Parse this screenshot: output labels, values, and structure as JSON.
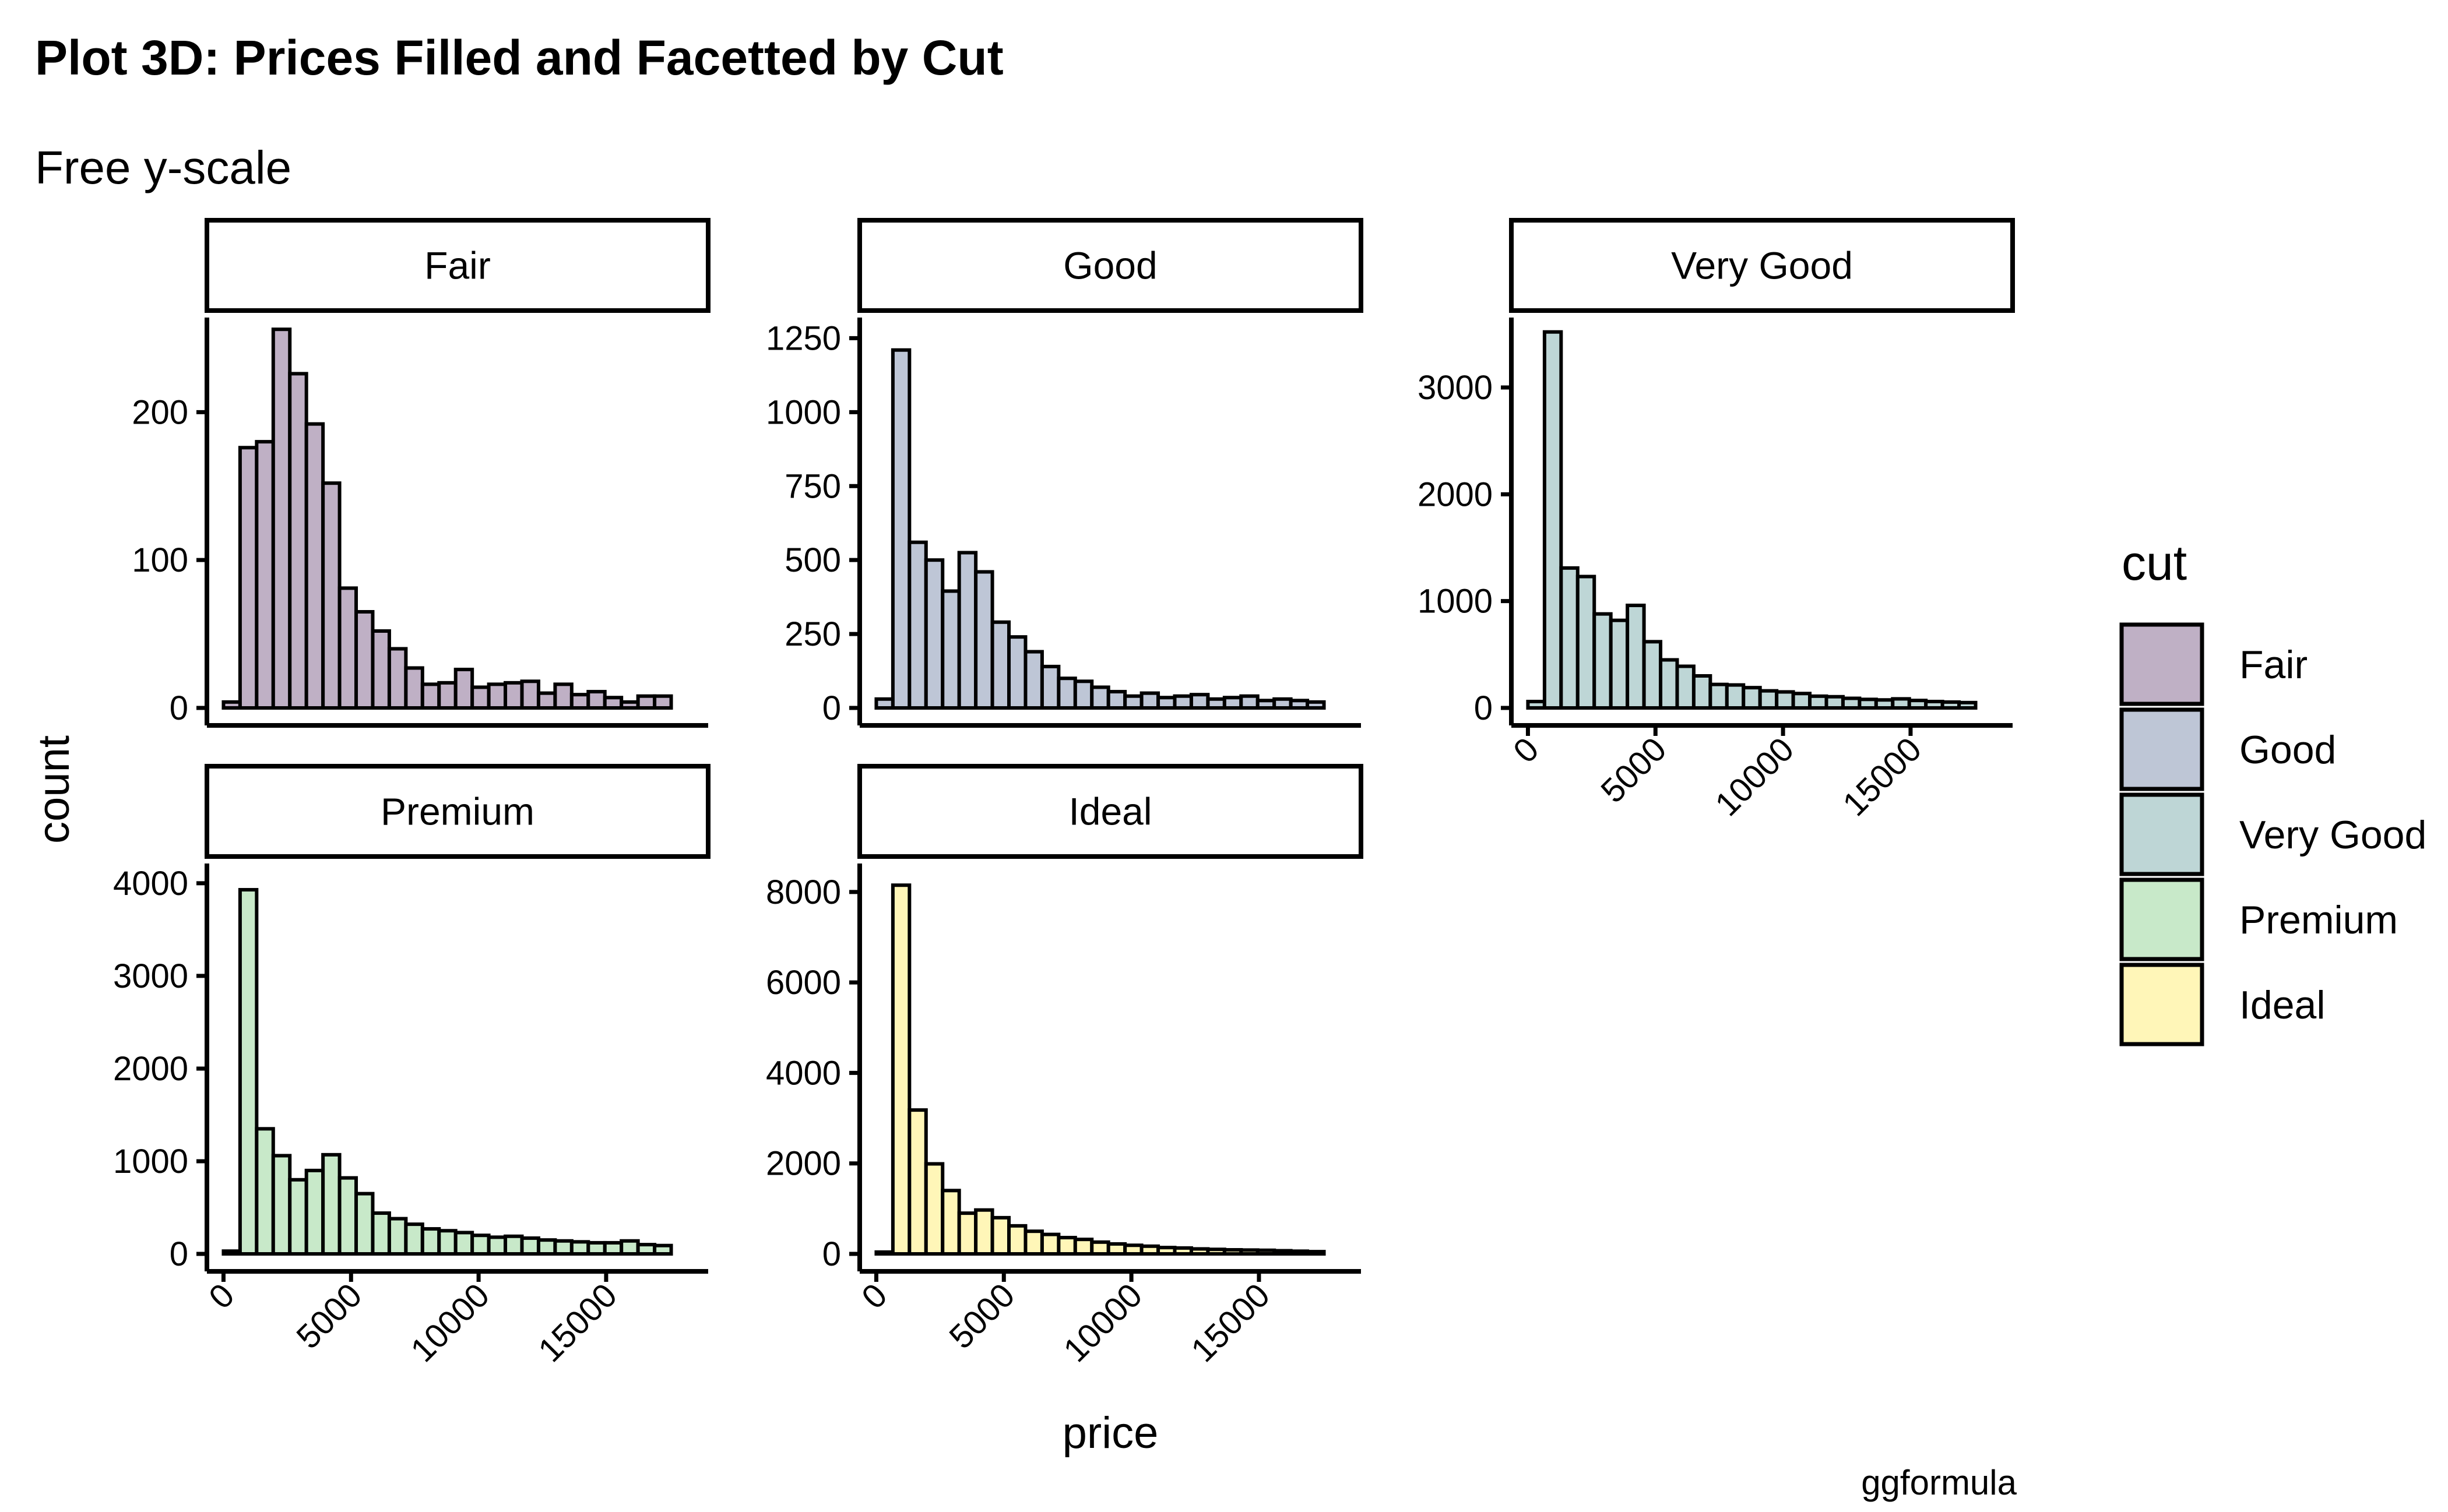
{
  "chart_data": {
    "type": "bar",
    "title": "Plot 3D: Prices Filled and Facetted by Cut",
    "subtitle": "Free y-scale",
    "xlabel": "price",
    "ylabel": "count",
    "caption": "ggformula",
    "legend": {
      "title": "cut",
      "position": "right"
    },
    "grid": false,
    "bin_starts": [
      0,
      650,
      1300,
      1950,
      2600,
      3250,
      3900,
      4550,
      5200,
      5850,
      6500,
      7150,
      7800,
      8450,
      9100,
      9750,
      10400,
      11050,
      11700,
      12350,
      13000,
      13650,
      14300,
      14950,
      15600,
      16250,
      16900,
      17550,
      18200
    ],
    "bin_width": 650,
    "xlim": [
      -650,
      19000
    ],
    "x_ticks": [
      0,
      5000,
      10000,
      15000
    ],
    "x_tick_labels": [
      "0",
      "5000",
      "10000",
      "15000"
    ],
    "panels": [
      {
        "name": "Fair",
        "color": "#bfb0c5",
        "ylim": [
          0,
          260
        ],
        "y_ticks": [
          0,
          100,
          200
        ],
        "y_tick_labels": [
          "0",
          "100",
          "200"
        ],
        "values": [
          4,
          176,
          180,
          256,
          226,
          192,
          152,
          81,
          65,
          52,
          40,
          27,
          16,
          17,
          26,
          14,
          16,
          17,
          18,
          10,
          16,
          9,
          11,
          7,
          4,
          8,
          8,
          0,
          0
        ]
      },
      {
        "name": "Good",
        "color": "#bec6d6",
        "ylim": [
          0,
          1300
        ],
        "y_ticks": [
          0,
          250,
          500,
          750,
          1000,
          1250
        ],
        "y_tick_labels": [
          "0",
          "250",
          "500",
          "750",
          "1000",
          "1250"
        ],
        "values": [
          30,
          1210,
          560,
          500,
          395,
          525,
          460,
          290,
          240,
          190,
          140,
          100,
          90,
          70,
          55,
          40,
          50,
          35,
          40,
          45,
          30,
          35,
          40,
          25,
          30,
          25,
          20,
          0,
          0
        ]
      },
      {
        "name": "Very Good",
        "color": "#bed6d6",
        "ylim": [
          0,
          3600
        ],
        "y_ticks": [
          0,
          1000,
          2000,
          3000
        ],
        "y_tick_labels": [
          "0",
          "1000",
          "2000",
          "3000"
        ],
        "values": [
          60,
          3520,
          1310,
          1230,
          880,
          820,
          960,
          620,
          450,
          390,
          300,
          220,
          215,
          190,
          160,
          150,
          135,
          110,
          105,
          90,
          80,
          75,
          85,
          70,
          60,
          55,
          50,
          0,
          0
        ]
      },
      {
        "name": "Premium",
        "color": "#c8e9c9",
        "ylim": [
          0,
          4150
        ],
        "y_ticks": [
          0,
          1000,
          2000,
          3000,
          4000
        ],
        "y_tick_labels": [
          "0",
          "1000",
          "2000",
          "3000",
          "4000"
        ],
        "values": [
          30,
          3930,
          1350,
          1060,
          800,
          900,
          1070,
          820,
          650,
          440,
          380,
          320,
          270,
          250,
          230,
          200,
          180,
          190,
          170,
          150,
          140,
          130,
          120,
          120,
          140,
          100,
          90,
          0,
          0
        ]
      },
      {
        "name": "Ideal",
        "color": "#fff6b8",
        "ylim": [
          0,
          8500
        ],
        "y_ticks": [
          0,
          2000,
          4000,
          6000,
          8000
        ],
        "y_tick_labels": [
          "0",
          "2000",
          "4000",
          "6000",
          "8000"
        ],
        "values": [
          40,
          8150,
          3180,
          1990,
          1400,
          900,
          970,
          800,
          620,
          500,
          430,
          360,
          320,
          260,
          220,
          190,
          170,
          140,
          130,
          110,
          100,
          90,
          85,
          80,
          70,
          60,
          50,
          0,
          0
        ]
      }
    ]
  }
}
